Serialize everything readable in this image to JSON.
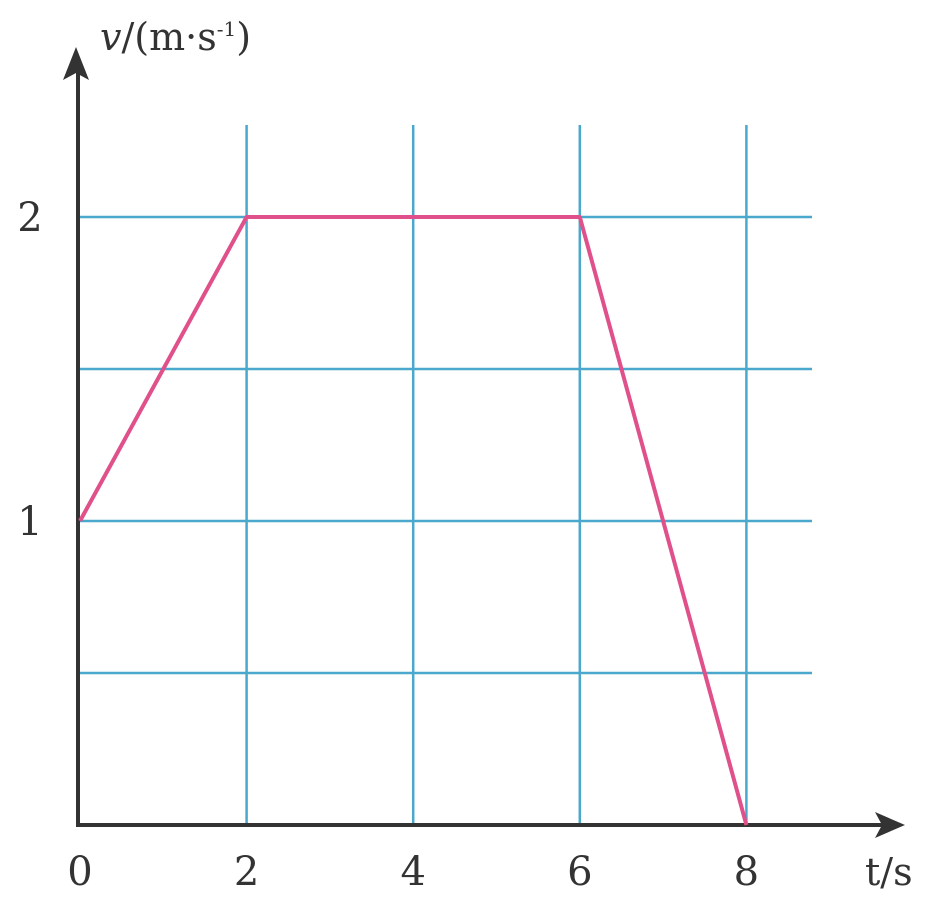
{
  "chart_data": {
    "type": "line",
    "title": "",
    "xlabel": "t/s",
    "ylabel_parts": {
      "var": "v",
      "unit": "/(m·s",
      "exp": "-1",
      "close": ")"
    },
    "xlim": [
      0,
      8.8
    ],
    "ylim": [
      0,
      2.6
    ],
    "x_ticks": [
      0,
      2,
      4,
      6,
      8
    ],
    "x_tick_labels": [
      "0",
      "2",
      "4",
      "6",
      "8"
    ],
    "y_ticks": [
      1,
      2
    ],
    "y_tick_labels": [
      "1",
      "2"
    ],
    "grid": true,
    "grid_x": [
      2,
      4,
      6,
      8
    ],
    "grid_y": [
      0.5,
      1,
      1.5,
      2
    ],
    "series": [
      {
        "x": [
          0,
          2,
          6,
          8
        ],
        "y": [
          1,
          2,
          2,
          0
        ]
      }
    ],
    "colors": {
      "grid": "#4aa8cc",
      "line": "#e0508a",
      "axis": "#333333"
    }
  }
}
